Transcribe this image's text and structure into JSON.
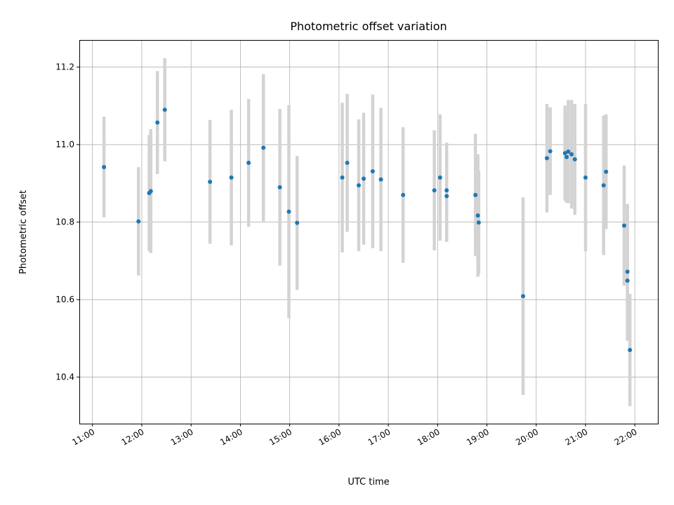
{
  "chart_data": {
    "type": "scatter",
    "title": "Photometric offset variation",
    "xlabel": "UTC time",
    "ylabel": "Photometric offset",
    "x_tick_labels": [
      "11:00",
      "12:00",
      "13:00",
      "14:00",
      "15:00",
      "16:00",
      "17:00",
      "18:00",
      "19:00",
      "20:00",
      "21:00",
      "22:00"
    ],
    "y_tick_labels": [
      "10.4",
      "10.6",
      "10.8",
      "11.0",
      "11.2"
    ],
    "xlim": [
      "10:44",
      "22:28"
    ],
    "ylim": [
      10.28,
      11.27
    ],
    "grid": true,
    "colors": {
      "point": "#1f77b4",
      "errorbar": "#d3d3d3"
    },
    "series": [
      {
        "x": [
          "11:14",
          "11:56",
          "12:09",
          "12:11",
          "12:19",
          "12:28",
          "13:23",
          "13:49",
          "14:10",
          "14:28",
          "14:48",
          "14:59",
          "15:09",
          "16:04",
          "16:10",
          "16:24",
          "16:30",
          "16:41",
          "16:51",
          "17:18",
          "17:56",
          "18:03",
          "18:11",
          "18:11",
          "18:46",
          "18:49",
          "18:50",
          "19:44",
          "20:13",
          "20:17",
          "20:35",
          "20:37",
          "20:39",
          "20:43",
          "20:47",
          "21:00",
          "21:22",
          "21:25",
          "21:47",
          "21:51",
          "21:51",
          "21:54"
        ],
        "y": [
          10.942,
          10.802,
          10.875,
          10.88,
          11.057,
          11.09,
          10.904,
          10.915,
          10.953,
          10.992,
          10.89,
          10.827,
          10.798,
          10.915,
          10.953,
          10.895,
          10.912,
          10.931,
          10.91,
          10.87,
          10.882,
          10.915,
          10.867,
          10.882,
          10.87,
          10.817,
          10.799,
          10.609,
          10.965,
          10.983,
          10.978,
          10.968,
          10.982,
          10.975,
          10.962,
          10.915,
          10.895,
          10.93,
          10.791,
          10.672,
          10.649,
          10.47
        ],
        "err": [
          0.13,
          0.14,
          0.15,
          0.16,
          0.133,
          0.133,
          0.16,
          0.175,
          0.165,
          0.19,
          0.202,
          0.275,
          0.173,
          0.193,
          0.178,
          0.17,
          0.17,
          0.198,
          0.185,
          0.175,
          0.155,
          0.163,
          0.118,
          0.123,
          0.158,
          0.158,
          0.133,
          0.255,
          0.14,
          0.113,
          0.123,
          0.118,
          0.133,
          0.14,
          0.143,
          0.19,
          0.18,
          0.148,
          0.155,
          0.175,
          0.155,
          0.145
        ]
      }
    ]
  }
}
